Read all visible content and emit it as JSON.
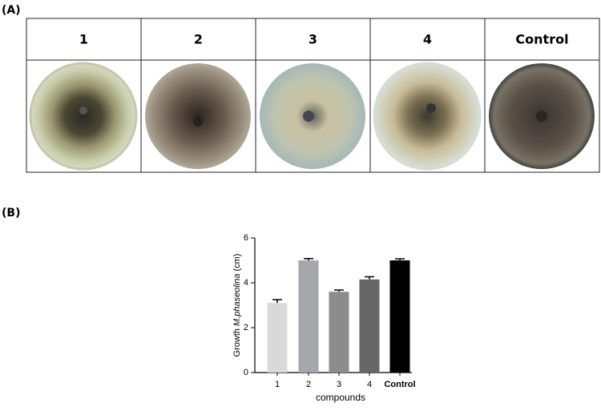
{
  "panels": [
    "(A)",
    "(B)"
  ],
  "table": {
    "headers": [
      "1",
      "2",
      "3",
      "4",
      "Control"
    ]
  },
  "chart_data": {
    "type": "bar",
    "categories": [
      "1",
      "2",
      "3",
      "4",
      "Control"
    ],
    "values": [
      3.1,
      5.0,
      3.6,
      4.15,
      5.0
    ],
    "errors": [
      0.15,
      0.08,
      0.08,
      0.12,
      0.07
    ],
    "colors": [
      "#d9d9d9",
      "#a6a6ad",
      "#8c8c8c",
      "#666666",
      "#000000"
    ],
    "ylim": [
      0,
      6
    ],
    "yticks": [
      0,
      2,
      4,
      6
    ],
    "x_label": "compounds",
    "y_label_parts": [
      "Growth",
      "M.phaseolina",
      "(cm)"
    ]
  }
}
